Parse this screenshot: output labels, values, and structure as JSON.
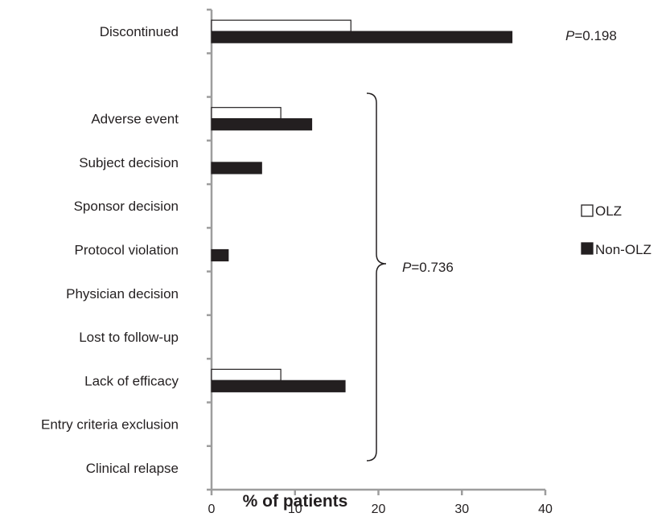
{
  "chart_data": {
    "type": "bar",
    "orientation": "horizontal",
    "categories": [
      "Discontinued",
      "",
      "Adverse event",
      "Subject decision",
      "Sponsor decision",
      "Protocol violation",
      "Physician decision",
      "Lost to follow-up",
      "Lack of efficacy",
      "Entry criteria exclusion",
      "Clinical relapse"
    ],
    "series": [
      {
        "name": "OLZ",
        "color": "#ffffff",
        "values": [
          16.7,
          null,
          8.3,
          0,
          0,
          0,
          0,
          0,
          8.3,
          0,
          0
        ]
      },
      {
        "name": "Non-OLZ",
        "color": "#231f20",
        "values": [
          36.0,
          null,
          12.0,
          6.0,
          0,
          2.0,
          0,
          0,
          16.0,
          0,
          0
        ]
      }
    ],
    "xlabel": "% of patients",
    "xlim": [
      0,
      40
    ],
    "xticks": [
      "0",
      "10",
      "20",
      "30",
      "40"
    ],
    "legend_position": "right",
    "annotations": {
      "p_prefix": "P",
      "p_discontinued": "=0.198",
      "p_reasons": "=0.736"
    }
  }
}
